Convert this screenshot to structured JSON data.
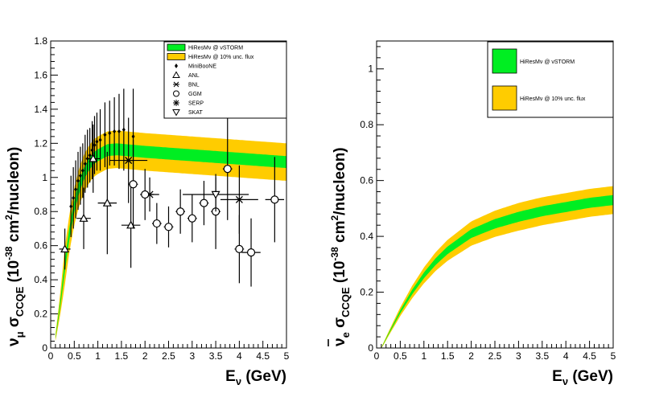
{
  "chart_data": [
    {
      "type": "line",
      "panel": "left",
      "title": "",
      "xlabel_parts": [
        "E",
        "ν",
        " (GeV)"
      ],
      "ylabel_parts": [
        "ν",
        "μ",
        " σ",
        "CCQE",
        " (10",
        "-38",
        " cm",
        "2",
        "/nucleon)"
      ],
      "xlim": [
        0,
        5
      ],
      "ylim": [
        0,
        1.8
      ],
      "xticks": [
        0,
        0.5,
        1,
        1.5,
        2,
        2.5,
        3,
        3.5,
        4,
        4.5,
        5
      ],
      "xtick_labels": [
        "0",
        "0.5",
        "1",
        "1.5",
        "2",
        "2.5",
        "3",
        "3.5",
        "4",
        "4.5",
        "5"
      ],
      "yticks": [
        0,
        0.2,
        0.4,
        0.6,
        0.8,
        1.0,
        1.2,
        1.4,
        1.6,
        1.8
      ],
      "ytick_labels": [
        "0",
        "0.2",
        "0.4",
        "0.6",
        "0.8",
        "1",
        "1.2",
        "1.4",
        "1.6",
        "1.8"
      ],
      "band_x": [
        0.1,
        0.2,
        0.3,
        0.4,
        0.5,
        0.6,
        0.7,
        0.8,
        0.9,
        1.0,
        1.2,
        1.4,
        1.6,
        1.8,
        2.0,
        2.5,
        3.0,
        3.5,
        4.0,
        4.5,
        5.0
      ],
      "band_center": [
        0.06,
        0.25,
        0.48,
        0.68,
        0.83,
        0.94,
        1.02,
        1.07,
        1.11,
        1.13,
        1.16,
        1.165,
        1.16,
        1.155,
        1.15,
        1.14,
        1.13,
        1.12,
        1.11,
        1.1,
        1.09
      ],
      "band_green_halfwidth": 0.035,
      "band_yellow_halfwidth": 0.11,
      "legend": [
        {
          "label": "HiResMν @ νSTORM",
          "symbol": "green-box"
        },
        {
          "label": "HiResMν @ 10% unc. flux",
          "symbol": "yellow-box"
        },
        {
          "label": "MiniBooNE",
          "symbol": "filled-diamond"
        },
        {
          "label": "ANL",
          "symbol": "open-triangle"
        },
        {
          "label": "BNL",
          "symbol": "star"
        },
        {
          "label": "GGM",
          "symbol": "open-circle"
        },
        {
          "label": "SERP",
          "symbol": "asterisk"
        },
        {
          "label": "SKAT",
          "symbol": "open-triangle-down"
        }
      ],
      "series": [
        {
          "name": "MiniBooNE",
          "marker": "diamond",
          "x": [
            0.43,
            0.48,
            0.53,
            0.58,
            0.63,
            0.68,
            0.73,
            0.78,
            0.83,
            0.88,
            0.93,
            0.98,
            1.05,
            1.15,
            1.25,
            1.35,
            1.45,
            1.55,
            1.75
          ],
          "y": [
            0.83,
            0.88,
            0.93,
            0.98,
            1.01,
            1.04,
            1.08,
            1.11,
            1.13,
            1.16,
            1.19,
            1.21,
            1.22,
            1.25,
            1.26,
            1.27,
            1.27,
            1.28,
            1.24
          ],
          "yerr": [
            0.18,
            0.18,
            0.17,
            0.17,
            0.17,
            0.16,
            0.17,
            0.17,
            0.16,
            0.17,
            0.17,
            0.17,
            0.18,
            0.19,
            0.19,
            0.2,
            0.22,
            0.24,
            0.28
          ]
        },
        {
          "name": "ANL",
          "marker": "triangle",
          "x": [
            0.3,
            0.7,
            0.9,
            1.2,
            1.7
          ],
          "y": [
            0.58,
            0.76,
            1.11,
            0.85,
            0.72
          ],
          "xerr": [
            0.12,
            0.15,
            0.15,
            0.2,
            0.2
          ],
          "yerr": [
            0.12,
            0.18,
            0.2,
            0.3,
            0.25
          ]
        },
        {
          "name": "BNL",
          "marker": "star",
          "x": [
            1.65,
            2.1,
            4.0
          ],
          "y": [
            1.1,
            0.9,
            0.87
          ],
          "xerr": [
            0.4,
            0.2,
            0.4
          ],
          "yerr": [
            0.25,
            0.1,
            0.2
          ]
        },
        {
          "name": "GGM",
          "marker": "circle",
          "x": [
            1.75,
            2.0,
            2.25,
            2.5,
            2.75,
            3.0,
            3.25,
            3.5,
            3.75,
            4.0,
            4.25,
            4.75
          ],
          "y": [
            0.96,
            0.9,
            0.73,
            0.71,
            0.8,
            0.76,
            0.85,
            0.8,
            1.05,
            0.58,
            0.56,
            0.87
          ],
          "xerr": [
            0.1,
            0.1,
            0.1,
            0.1,
            0.1,
            0.1,
            0.1,
            0.1,
            0.1,
            0.1,
            0.2,
            0.2
          ],
          "yerr": [
            0.26,
            0.15,
            0.12,
            0.12,
            0.13,
            0.14,
            0.13,
            0.22,
            0.3,
            0.2,
            0.2,
            0.25
          ]
        },
        {
          "name": "SKAT",
          "marker": "triangle-down",
          "x": [
            3.5
          ],
          "y": [
            0.9
          ],
          "xerr": [
            0.7
          ],
          "yerr": [
            0.1
          ]
        }
      ]
    },
    {
      "type": "line",
      "panel": "right",
      "title": "",
      "xlabel_parts": [
        "E",
        "ν",
        " (GeV)"
      ],
      "ylabel_parts": [
        "ν",
        "e",
        " σ",
        "CCQE",
        " (10",
        "-38",
        " cm",
        "2",
        "/nucleon)"
      ],
      "xlim": [
        0,
        5
      ],
      "ylim": [
        0,
        1.1
      ],
      "xticks": [
        0,
        0.5,
        1,
        1.5,
        2,
        2.5,
        3,
        3.5,
        4,
        4.5,
        5
      ],
      "xtick_labels": [
        "0",
        "0.5",
        "1",
        "1.5",
        "2",
        "2.5",
        "3",
        "3.5",
        "4",
        "4.5",
        "5"
      ],
      "yticks": [
        0,
        0.2,
        0.4,
        0.6,
        0.8,
        1.0
      ],
      "ytick_labels": [
        "0",
        "0.2",
        "0.4",
        "0.6",
        "0.8",
        "1"
      ],
      "band_x": [
        0.1,
        0.25,
        0.5,
        0.75,
        1.0,
        1.25,
        1.5,
        1.75,
        2.0,
        2.5,
        3.0,
        3.5,
        4.0,
        4.5,
        5.0
      ],
      "band_center": [
        0.0,
        0.05,
        0.13,
        0.2,
        0.26,
        0.31,
        0.35,
        0.38,
        0.41,
        0.445,
        0.47,
        0.49,
        0.505,
        0.52,
        0.53
      ],
      "band_green_halfwidth": 0.018,
      "band_yellow_halfwidth": 0.05,
      "legend": [
        {
          "label": "HiResMν @ νSTORM",
          "symbol": "green-box"
        },
        {
          "label": "HiResMν @ 10% unc. flux",
          "symbol": "yellow-box"
        }
      ]
    }
  ],
  "colors": {
    "green_band": "#00ee22",
    "yellow_band": "#ffcc00",
    "axis": "#000000"
  }
}
